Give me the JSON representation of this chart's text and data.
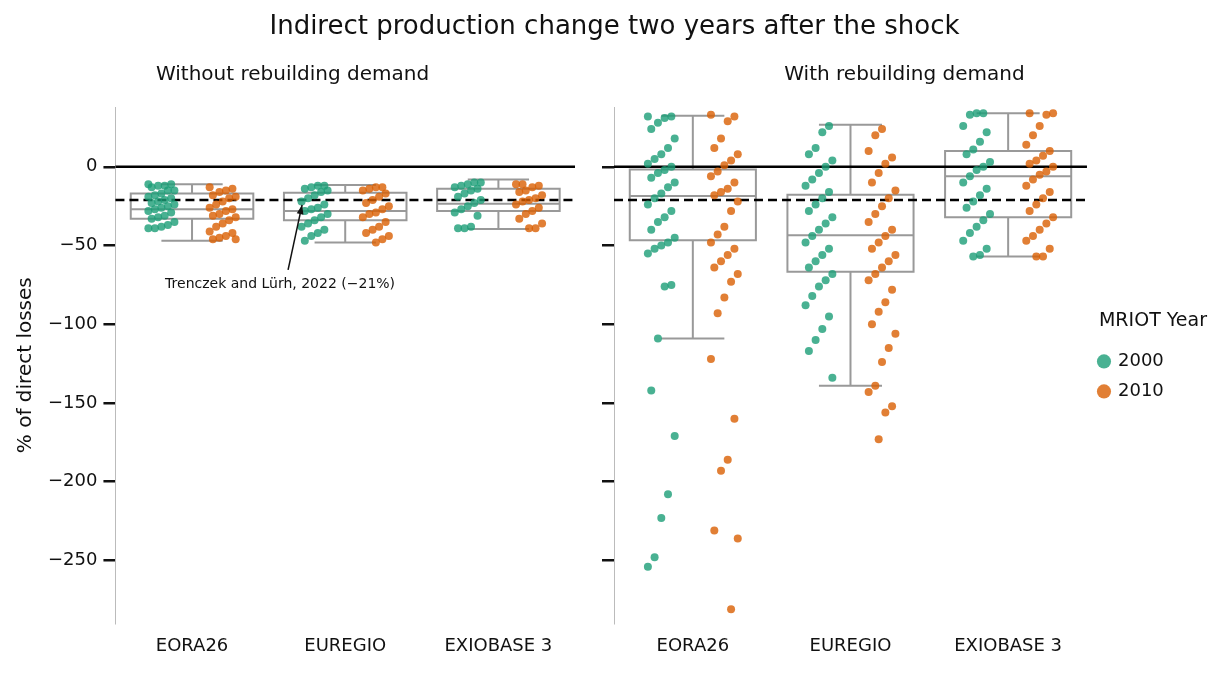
{
  "chart_data": [
    {
      "type": "box",
      "title": "Indirect production change two years after the shock",
      "subtitle": "Without rebuilding demand",
      "ylabel": "% of direct losses",
      "categories": [
        "EORA26",
        "EUREGIO",
        "EXIOBASE 3"
      ],
      "boxes": [
        {
          "low": -47,
          "q1": -33,
          "median": -27,
          "q3": -17,
          "high": -11
        },
        {
          "low": -48,
          "q1": -34,
          "median": -28,
          "q3": -16.5,
          "high": -11.5
        },
        {
          "low": -39.5,
          "q1": -28,
          "median": -23.5,
          "q3": -14,
          "high": -8
        }
      ],
      "series": [
        {
          "type": "scatter",
          "color": "#1b9e77",
          "x": [
            "EORA26",
            "EORA26",
            "EORA26",
            "EORA26",
            "EORA26",
            "EORA26",
            "EORA26",
            "EORA26",
            "EORA26",
            "EORA26",
            "EORA26",
            "EORA26",
            "EORA26",
            "EORA26",
            "EORA26",
            "EORA26",
            "EORA26",
            "EORA26",
            "EORA26",
            "EORA26",
            "EORA26",
            "EORA26",
            "EORA26",
            "EORA26",
            "EORA26",
            "EORA26",
            "EORA26",
            "EORA26",
            "EUREGIO",
            "EUREGIO",
            "EUREGIO",
            "EUREGIO",
            "EUREGIO",
            "EUREGIO",
            "EUREGIO",
            "EUREGIO",
            "EUREGIO",
            "EUREGIO",
            "EUREGIO",
            "EUREGIO",
            "EUREGIO",
            "EUREGIO",
            "EUREGIO",
            "EUREGIO",
            "EUREGIO",
            "EUREGIO",
            "EUREGIO",
            "EUREGIO",
            "EUREGIO",
            "EUREGIO",
            "EXIOBASE 3",
            "EXIOBASE 3",
            "EXIOBASE 3",
            "EXIOBASE 3",
            "EXIOBASE 3",
            "EXIOBASE 3",
            "EXIOBASE 3",
            "EXIOBASE 3",
            "EXIOBASE 3",
            "EXIOBASE 3",
            "EXIOBASE 3",
            "EXIOBASE 3",
            "EXIOBASE 3",
            "EXIOBASE 3",
            "EXIOBASE 3",
            "EXIOBASE 3",
            "EXIOBASE 3",
            "EXIOBASE 3"
          ],
          "values": [
            -11,
            -11,
            -12,
            -12,
            -13,
            -15,
            -15,
            -17,
            -18,
            -19,
            -20,
            -21,
            -22,
            -23,
            -24,
            -25,
            -26,
            -27,
            -28,
            -29,
            -31,
            -32,
            -33,
            -35,
            -37,
            -38,
            -39,
            -39,
            -12,
            -12,
            -13,
            -14,
            -15,
            -16,
            -18,
            -20,
            -22,
            -24,
            -26,
            -27,
            -28,
            -30,
            -32,
            -34,
            -36,
            -38,
            -40,
            -42,
            -44,
            -47,
            -10,
            -10,
            -11,
            -12,
            -13,
            -14,
            -15,
            -17,
            -19,
            -21,
            -23,
            -25,
            -27,
            -29,
            -31,
            -38,
            -39,
            -39
          ]
        },
        {
          "type": "scatter",
          "color": "#d95f02",
          "x": [
            "EORA26",
            "EORA26",
            "EORA26",
            "EORA26",
            "EORA26",
            "EORA26",
            "EORA26",
            "EORA26",
            "EORA26",
            "EORA26",
            "EORA26",
            "EORA26",
            "EORA26",
            "EORA26",
            "EORA26",
            "EORA26",
            "EORA26",
            "EORA26",
            "EORA26",
            "EORA26",
            "EORA26",
            "EORA26",
            "EORA26",
            "EORA26",
            "EUREGIO",
            "EUREGIO",
            "EUREGIO",
            "EUREGIO",
            "EUREGIO",
            "EUREGIO",
            "EUREGIO",
            "EUREGIO",
            "EUREGIO",
            "EUREGIO",
            "EUREGIO",
            "EUREGIO",
            "EUREGIO",
            "EUREGIO",
            "EUREGIO",
            "EUREGIO",
            "EUREGIO",
            "EUREGIO",
            "EUREGIO",
            "EUREGIO",
            "EXIOBASE 3",
            "EXIOBASE 3",
            "EXIOBASE 3",
            "EXIOBASE 3",
            "EXIOBASE 3",
            "EXIOBASE 3",
            "EXIOBASE 3",
            "EXIOBASE 3",
            "EXIOBASE 3",
            "EXIOBASE 3",
            "EXIOBASE 3",
            "EXIOBASE 3",
            "EXIOBASE 3",
            "EXIOBASE 3",
            "EXIOBASE 3",
            "EXIOBASE 3",
            "EXIOBASE 3",
            "EXIOBASE 3"
          ],
          "values": [
            -13,
            -14,
            -15,
            -16,
            -18,
            -19,
            -20,
            -22,
            -24,
            -26,
            -27,
            -28,
            -30,
            -31,
            -32,
            -34,
            -36,
            -38,
            -41,
            -42,
            -44,
            -45,
            -46,
            -46,
            -13,
            -13,
            -14,
            -15,
            -17,
            -19,
            -21,
            -23,
            -25,
            -27,
            -29,
            -30,
            -32,
            -35,
            -38,
            -40,
            -42,
            -44,
            -46,
            -48,
            -11,
            -11,
            -12,
            -13,
            -15,
            -16,
            -18,
            -20,
            -21,
            -22,
            -24,
            -26,
            -28,
            -30,
            -33,
            -36,
            -39,
            -39
          ]
        }
      ],
      "ylim": [
        -290,
        38
      ],
      "yticks": [
        0,
        {
          "value": -50,
          "label": "−50"
        },
        {
          "value": -100,
          "label": "−100"
        },
        {
          "value": -150,
          "label": "−150"
        },
        {
          "value": -200,
          "label": "−200"
        },
        {
          "value": -250,
          "label": "−250"
        }
      ],
      "ref_lines": [
        {
          "axis": "y",
          "value": 0,
          "color": "#000000",
          "line_style": "solid"
        },
        {
          "axis": "y",
          "value": -21,
          "color": "#000000",
          "line_style": "dashed",
          "label": "Trenczek and Lürh, 2022 (−21%)"
        }
      ],
      "grid": false,
      "legend": false,
      "marker": "circle"
    },
    {
      "type": "box",
      "subtitle": "With rebuilding demand",
      "legend_title": "MRIOT Year",
      "categories": [
        "EORA26",
        "EUREGIO",
        "EXIOBASE 3"
      ],
      "boxes": [
        {
          "low": -109,
          "q1": -46.6,
          "median": -18.6,
          "q3": -1.7,
          "high": 32.5
        },
        {
          "low": -139,
          "q1": -66.7,
          "median": -43.4,
          "q3": -17.7,
          "high": 26.7
        },
        {
          "low": -57,
          "q1": -32,
          "median": -6,
          "q3": 10,
          "high": 34
        }
      ],
      "series": [
        {
          "type": "scatter",
          "name": "2000",
          "color": "#1b9e77",
          "x": [
            "EORA26",
            "EORA26",
            "EORA26",
            "EORA26",
            "EORA26",
            "EORA26",
            "EORA26",
            "EORA26",
            "EORA26",
            "EORA26",
            "EORA26",
            "EORA26",
            "EORA26",
            "EORA26",
            "EORA26",
            "EORA26",
            "EORA26",
            "EORA26",
            "EORA26",
            "EORA26",
            "EORA26",
            "EORA26",
            "EORA26",
            "EORA26",
            "EORA26",
            "EORA26",
            "EORA26",
            "EORA26",
            "EORA26",
            "EORA26",
            "EORA26",
            "EORA26",
            "EORA26",
            "EORA26",
            "EORA26",
            "EORA26",
            "EORA26",
            "EUREGIO",
            "EUREGIO",
            "EUREGIO",
            "EUREGIO",
            "EUREGIO",
            "EUREGIO",
            "EUREGIO",
            "EUREGIO",
            "EUREGIO",
            "EUREGIO",
            "EUREGIO",
            "EUREGIO",
            "EUREGIO",
            "EUREGIO",
            "EUREGIO",
            "EUREGIO",
            "EUREGIO",
            "EUREGIO",
            "EUREGIO",
            "EUREGIO",
            "EUREGIO",
            "EUREGIO",
            "EUREGIO",
            "EUREGIO",
            "EUREGIO",
            "EUREGIO",
            "EUREGIO",
            "EUREGIO",
            "EUREGIO",
            "EUREGIO",
            "EUREGIO",
            "EUREGIO",
            "EXIOBASE 3",
            "EXIOBASE 3",
            "EXIOBASE 3",
            "EXIOBASE 3",
            "EXIOBASE 3",
            "EXIOBASE 3",
            "EXIOBASE 3",
            "EXIOBASE 3",
            "EXIOBASE 3",
            "EXIOBASE 3",
            "EXIOBASE 3",
            "EXIOBASE 3",
            "EXIOBASE 3",
            "EXIOBASE 3",
            "EXIOBASE 3",
            "EXIOBASE 3",
            "EXIOBASE 3",
            "EXIOBASE 3",
            "EXIOBASE 3",
            "EXIOBASE 3",
            "EXIOBASE 3",
            "EXIOBASE 3",
            "EXIOBASE 3",
            "EXIOBASE 3",
            "EXIOBASE 3"
          ],
          "values": [
            32,
            32,
            31,
            28,
            24,
            18,
            12,
            8,
            5,
            2,
            0,
            -2,
            -4,
            -7,
            -10,
            -13,
            -17,
            -20,
            -24,
            -28,
            -32,
            -35,
            -40,
            -45,
            -48,
            -50,
            -52,
            -55,
            -75,
            -76,
            -109,
            -142,
            -171,
            -208,
            -223,
            -248,
            -254,
            26,
            22,
            12,
            8,
            4,
            0,
            -4,
            -8,
            -12,
            -16,
            -20,
            -24,
            -28,
            -32,
            -36,
            -40,
            -44,
            -48,
            -52,
            -56,
            -60,
            -64,
            -68,
            -72,
            -76,
            -82,
            -88,
            -95,
            -103,
            -110,
            -117,
            -134,
            34,
            34,
            33,
            26,
            22,
            16,
            11,
            8,
            3,
            0,
            -2,
            -6,
            -10,
            -14,
            -18,
            -22,
            -26,
            -30,
            -34,
            -38,
            -42,
            -47,
            -52,
            -56,
            -57
          ]
        },
        {
          "type": "scatter",
          "name": "2010",
          "color": "#d95f02",
          "x": [
            "EORA26",
            "EORA26",
            "EORA26",
            "EORA26",
            "EORA26",
            "EORA26",
            "EORA26",
            "EORA26",
            "EORA26",
            "EORA26",
            "EORA26",
            "EORA26",
            "EORA26",
            "EORA26",
            "EORA26",
            "EORA26",
            "EORA26",
            "EORA26",
            "EORA26",
            "EORA26",
            "EORA26",
            "EORA26",
            "EORA26",
            "EORA26",
            "EORA26",
            "EORA26",
            "EORA26",
            "EORA26",
            "EORA26",
            "EORA26",
            "EORA26",
            "EORA26",
            "EORA26",
            "EORA26",
            "EUREGIO",
            "EUREGIO",
            "EUREGIO",
            "EUREGIO",
            "EUREGIO",
            "EUREGIO",
            "EUREGIO",
            "EUREGIO",
            "EUREGIO",
            "EUREGIO",
            "EUREGIO",
            "EUREGIO",
            "EUREGIO",
            "EUREGIO",
            "EUREGIO",
            "EUREGIO",
            "EUREGIO",
            "EUREGIO",
            "EUREGIO",
            "EUREGIO",
            "EUREGIO",
            "EUREGIO",
            "EUREGIO",
            "EUREGIO",
            "EUREGIO",
            "EUREGIO",
            "EUREGIO",
            "EUREGIO",
            "EUREGIO",
            "EUREGIO",
            "EUREGIO",
            "EUREGIO",
            "EUREGIO",
            "EXIOBASE 3",
            "EXIOBASE 3",
            "EXIOBASE 3",
            "EXIOBASE 3",
            "EXIOBASE 3",
            "EXIOBASE 3",
            "EXIOBASE 3",
            "EXIOBASE 3",
            "EXIOBASE 3",
            "EXIOBASE 3",
            "EXIOBASE 3",
            "EXIOBASE 3",
            "EXIOBASE 3",
            "EXIOBASE 3",
            "EXIOBASE 3",
            "EXIOBASE 3",
            "EXIOBASE 3",
            "EXIOBASE 3",
            "EXIOBASE 3",
            "EXIOBASE 3",
            "EXIOBASE 3",
            "EXIOBASE 3",
            "EXIOBASE 3",
            "EXIOBASE 3",
            "EXIOBASE 3",
            "EXIOBASE 3",
            "EXIOBASE 3"
          ],
          "values": [
            33,
            32,
            29,
            18,
            12,
            8,
            4,
            1,
            -3,
            -6,
            -10,
            -14,
            -16,
            -18,
            -22,
            -28,
            -38,
            -43,
            -48,
            -52,
            -56,
            -60,
            -64,
            -68,
            -73,
            -83,
            -93,
            -122,
            -160,
            -186,
            -193,
            -231,
            -236,
            -281,
            24,
            20,
            10,
            6,
            2,
            -4,
            -10,
            -15,
            -20,
            -25,
            -30,
            -35,
            -40,
            -44,
            -48,
            -52,
            -56,
            -60,
            -64,
            -68,
            -72,
            -78,
            -86,
            -92,
            -100,
            -106,
            -115,
            -124,
            -139,
            -143,
            -152,
            -156,
            -173,
            34,
            34,
            33,
            26,
            20,
            14,
            10,
            7,
            4,
            2,
            0,
            -3,
            -5,
            -8,
            -12,
            -16,
            -20,
            -24,
            -28,
            -32,
            -36,
            -40,
            -44,
            -47,
            -52,
            -57,
            -57
          ]
        }
      ],
      "ylim": [
        -290,
        38
      ],
      "yticks": [
        {
          "value": 0,
          "label": null
        },
        {
          "value": -50,
          "label": null
        },
        {
          "value": -100,
          "label": null
        },
        {
          "value": -150,
          "label": null
        },
        {
          "value": -200,
          "label": null
        },
        {
          "value": -250,
          "label": null
        }
      ],
      "tick_labels": "x",
      "ref_lines": [
        {
          "axis": "y",
          "value": 0,
          "color": "#000000",
          "line_style": "solid"
        },
        {
          "axis": "y",
          "value": -21,
          "color": "#000000",
          "line_style": "dashed"
        }
      ],
      "grid": false,
      "legend": "right",
      "marker": "circle"
    }
  ]
}
